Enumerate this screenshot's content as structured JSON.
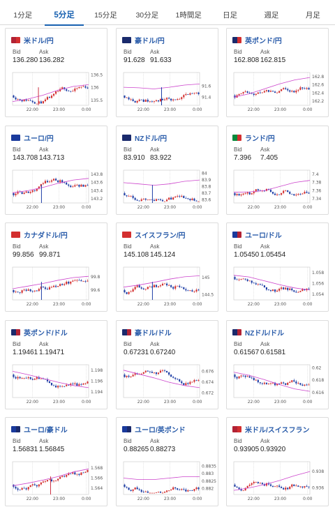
{
  "tabs": [
    {
      "label": "1分足",
      "active": false
    },
    {
      "label": "5分足",
      "active": true
    },
    {
      "label": "15分足",
      "active": false
    },
    {
      "label": "30分足",
      "active": false
    },
    {
      "label": "1時間足",
      "active": false
    },
    {
      "label": "日足",
      "active": false
    },
    {
      "label": "週足",
      "active": false
    },
    {
      "label": "月足",
      "active": false
    }
  ],
  "labels": {
    "bid": "Bid",
    "ask": "Ask"
  },
  "colors": {
    "up": "#d32f2f",
    "down": "#1f3fa6",
    "ma": "#cc44cc",
    "marker": "#cc3344",
    "active_tab": "#1760b0",
    "pair_name": "#2a5caa"
  },
  "pairs": [
    {
      "name": "米ドル/円",
      "bid": "136.280",
      "ask": "136.282",
      "flags": [
        "#b22234",
        "#d32f2f"
      ],
      "chart_data": {
        "type": "candlestick",
        "x_ticks": [
          "22:00",
          "23:00",
          "0:00"
        ],
        "y_ticks": [
          "136.5",
          "136",
          "135.5"
        ],
        "ylim": [
          135.3,
          136.6
        ],
        "ma_values": [
          135.45,
          135.55,
          135.7,
          135.9,
          136.05,
          136.12
        ],
        "marker_x": 0.34,
        "marker_color": "#cc3344",
        "trend": 0.6,
        "seed": 11
      }
    },
    {
      "name": "豪ドル/円",
      "bid": "91.628",
      "ask": "91.633",
      "flags": [
        "#1a2a6c",
        "#1a2a6c"
      ],
      "chart_data": {
        "type": "candlestick",
        "x_ticks": [
          "22:00",
          "23:00",
          "0:00"
        ],
        "y_ticks": [
          "91.6",
          "91.4"
        ],
        "ylim": [
          91.25,
          91.85
        ],
        "ma_values": [
          91.58,
          91.57,
          91.55,
          91.58,
          91.62,
          91.64
        ],
        "marker_x": 0.5,
        "marker_color": "#1f3fa6",
        "trend": 0.1,
        "seed": 23
      }
    },
    {
      "name": "英ポンド/円",
      "bid": "162.808",
      "ask": "162.815",
      "flags": [
        "#1a2a6c",
        "#d32f2f"
      ],
      "chart_data": {
        "type": "candlestick",
        "x_ticks": [
          "22:00",
          "23:00",
          "0:00"
        ],
        "y_ticks": [
          "162.8",
          "162.6",
          "162.4",
          "162.2"
        ],
        "ylim": [
          162.1,
          162.9
        ],
        "ma_values": [
          162.3,
          162.38,
          162.5,
          162.62,
          162.72,
          162.78
        ],
        "marker_x": null,
        "marker_color": "#cc3344",
        "trend": 0.5,
        "seed": 37
      }
    },
    {
      "name": "ユーロ/円",
      "bid": "143.708",
      "ask": "143.713",
      "flags": [
        "#1a3a9c",
        "#1a3a9c"
      ],
      "chart_data": {
        "type": "candlestick",
        "x_ticks": [
          "22:00",
          "23:00",
          "0:00"
        ],
        "y_ticks": [
          "143.8",
          "143.6",
          "143.4",
          "143.2"
        ],
        "ylim": [
          143.1,
          143.9
        ],
        "ma_values": [
          143.35,
          143.4,
          143.48,
          143.58,
          143.66,
          143.7
        ],
        "marker_x": 0.38,
        "marker_color": "#1f3fa6",
        "trend": 0.5,
        "seed": 41
      }
    },
    {
      "name": "NZドル/円",
      "bid": "83.910",
      "ask": "83.922",
      "flags": [
        "#1a2a6c",
        "#1a2a6c"
      ],
      "chart_data": {
        "type": "candlestick",
        "x_ticks": [
          "22:00",
          "23:00",
          "0:00"
        ],
        "y_ticks": [
          "84",
          "83.9",
          "83.8",
          "83.7",
          "83.6"
        ],
        "ylim": [
          83.55,
          84.05
        ],
        "ma_values": [
          83.86,
          83.84,
          83.82,
          83.84,
          83.88,
          83.9
        ],
        "marker_x": 0.38,
        "marker_color": "#1f3fa6",
        "trend": 0.15,
        "seed": 53
      }
    },
    {
      "name": "ランド/円",
      "bid": "7.396",
      "ask": "7.405",
      "flags": [
        "#0a8a3c",
        "#d32f2f"
      ],
      "chart_data": {
        "type": "candlestick",
        "x_ticks": [
          "22:00",
          "23:00",
          "0:00"
        ],
        "y_ticks": [
          "7.4",
          "7.38",
          "7.36",
          "7.34"
        ],
        "ylim": [
          7.33,
          7.41
        ],
        "ma_values": [
          7.356,
          7.357,
          7.36,
          7.37,
          7.38,
          7.385
        ],
        "marker_x": null,
        "marker_color": "#cc3344",
        "trend": 0.55,
        "seed": 67
      }
    },
    {
      "name": "カナダドル/円",
      "bid": "99.856",
      "ask": "99.871",
      "flags": [
        "#d32f2f",
        "#d32f2f"
      ],
      "chart_data": {
        "type": "candlestick",
        "x_ticks": [
          "22:00",
          "23:00",
          "0:00"
        ],
        "y_ticks": [
          "99.8",
          "99.6"
        ],
        "ylim": [
          99.45,
          99.95
        ],
        "ma_values": [
          99.62,
          99.66,
          99.7,
          99.75,
          99.79,
          99.81
        ],
        "marker_x": 0.38,
        "marker_color": "#1f3fa6",
        "trend": 0.45,
        "seed": 71
      }
    },
    {
      "name": "スイスフラン/円",
      "bid": "145.108",
      "ask": "145.124",
      "flags": [
        "#d32f2f",
        "#d32f2f"
      ],
      "chart_data": {
        "type": "candlestick",
        "x_ticks": [
          "22:00",
          "23:00",
          "0:00"
        ],
        "y_ticks": [
          "145",
          "144.5"
        ],
        "ylim": [
          144.35,
          145.3
        ],
        "ma_values": [
          144.72,
          144.78,
          144.86,
          144.95,
          145.02,
          145.05
        ],
        "marker_x": 0.38,
        "marker_color": "#1f3fa6",
        "trend": 0.4,
        "seed": 83
      }
    },
    {
      "name": "ユーロ/ドル",
      "bid": "1.05450",
      "ask": "1.05454",
      "flags": [
        "#1a3a9c",
        "#b22234"
      ],
      "chart_data": {
        "type": "candlestick",
        "x_ticks": [
          "22:00",
          "23:00",
          "0:00"
        ],
        "y_ticks": [
          "1.058",
          "1.056",
          "1.054"
        ],
        "ylim": [
          1.053,
          1.059
        ],
        "ma_values": [
          1.0575,
          1.0572,
          1.0565,
          1.0558,
          1.0552,
          1.0548
        ],
        "marker_x": null,
        "marker_color": "#cc3344",
        "trend": -0.5,
        "seed": 97
      }
    },
    {
      "name": "英ポンド/ドル",
      "bid": "1.19461",
      "ask": "1.19471",
      "flags": [
        "#1a2a6c",
        "#b22234"
      ],
      "chart_data": {
        "type": "candlestick",
        "x_ticks": [
          "22:00",
          "23:00",
          "0:00"
        ],
        "y_ticks": [
          "1.198",
          "1.196",
          "1.194"
        ],
        "ylim": [
          1.193,
          1.199
        ],
        "ma_values": [
          1.1978,
          1.1972,
          1.1965,
          1.1958,
          1.1952,
          1.1948
        ],
        "marker_x": null,
        "marker_color": "#cc3344",
        "trend": -0.5,
        "seed": 103
      }
    },
    {
      "name": "豪ドル/ドル",
      "bid": "0.67231",
      "ask": "0.67240",
      "flags": [
        "#1a2a6c",
        "#b22234"
      ],
      "chart_data": {
        "type": "candlestick",
        "x_ticks": [
          "22:00",
          "23:00",
          "0:00"
        ],
        "y_ticks": [
          "0.676",
          "0.674",
          "0.672"
        ],
        "ylim": [
          0.6712,
          0.6772
        ],
        "ma_values": [
          0.6762,
          0.6755,
          0.6748,
          0.674,
          0.6734,
          0.673
        ],
        "marker_x": null,
        "marker_color": "#cc3344",
        "trend": -0.55,
        "seed": 113
      }
    },
    {
      "name": "NZドル/ドル",
      "bid": "0.61567",
      "ask": "0.61581",
      "flags": [
        "#1a2a6c",
        "#b22234"
      ],
      "chart_data": {
        "type": "candlestick",
        "x_ticks": [
          "22:00",
          "23:00",
          "0:00"
        ],
        "y_ticks": [
          "0.62",
          "0.618",
          "0.616"
        ],
        "ylim": [
          0.6152,
          0.6205
        ],
        "ma_values": [
          0.6193,
          0.6188,
          0.6181,
          0.6173,
          0.6166,
          0.6162
        ],
        "marker_x": null,
        "marker_color": "#cc3344",
        "trend": -0.5,
        "seed": 127
      }
    },
    {
      "name": "ユーロ/豪ドル",
      "bid": "1.56831",
      "ask": "1.56845",
      "flags": [
        "#1a3a9c",
        "#1a2a6c"
      ],
      "chart_data": {
        "type": "candlestick",
        "x_ticks": [
          "22:00",
          "23:00",
          "0:00"
        ],
        "y_ticks": [
          "1.568",
          "1.566",
          "1.564"
        ],
        "ylim": [
          1.5628,
          1.5692
        ],
        "ma_values": [
          1.5645,
          1.565,
          1.5656,
          1.5663,
          1.5672,
          1.5678
        ],
        "marker_x": 0.5,
        "marker_color": "#cc3344",
        "trend": 0.55,
        "seed": 131
      }
    },
    {
      "name": "ユーロ/英ポンド",
      "bid": "0.88265",
      "ask": "0.88273",
      "flags": [
        "#1a3a9c",
        "#1a2a6c"
      ],
      "chart_data": {
        "type": "candlestick",
        "x_ticks": [
          "22:00",
          "23:00",
          "0:00"
        ],
        "y_ticks": [
          "0.8835",
          "0.883",
          "0.8825",
          "0.882"
        ],
        "ylim": [
          0.8816,
          0.8838
        ],
        "ma_values": [
          0.8827,
          0.8826,
          0.8826,
          0.8827,
          0.8828,
          0.8828
        ],
        "marker_x": null,
        "marker_color": "#cc3344",
        "trend": 0.05,
        "seed": 149
      }
    },
    {
      "name": "米ドル/スイスフラン",
      "bid": "0.93905",
      "ask": "0.93920",
      "flags": [
        "#b22234",
        "#d32f2f"
      ],
      "chart_data": {
        "type": "candlestick",
        "x_ticks": [
          "22:00",
          "23:00",
          "0:00"
        ],
        "y_ticks": [
          "0.938",
          "0.936"
        ],
        "ylim": [
          0.9352,
          0.9392
        ],
        "ma_values": [
          0.9357,
          0.936,
          0.9364,
          0.9369,
          0.9375,
          0.938
        ],
        "marker_x": null,
        "marker_color": "#cc3344",
        "trend": 0.65,
        "seed": 151
      }
    }
  ]
}
